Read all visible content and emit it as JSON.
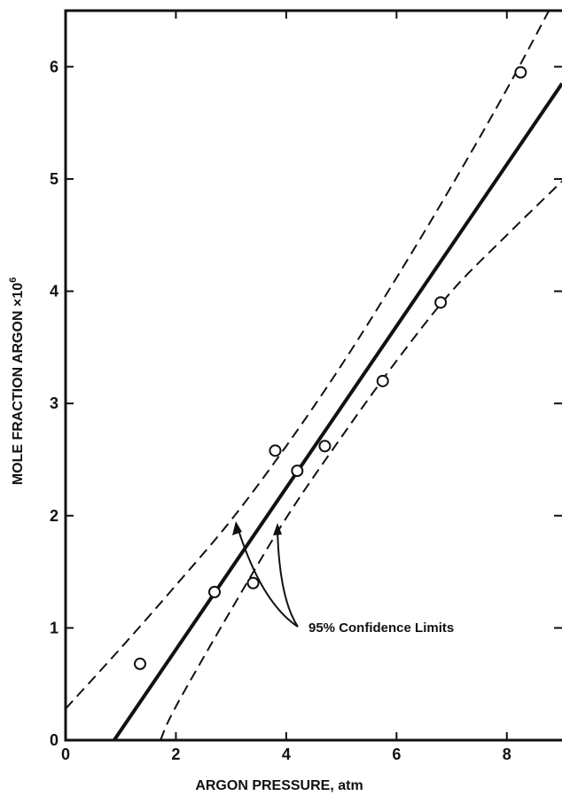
{
  "chart_data": {
    "type": "scatter",
    "xlabel": "ARGON PRESSURE, atm",
    "ylabel_main": "MOLE FRACTION ARGON ×10",
    "ylabel_exponent": "6",
    "xlim": [
      0,
      9
    ],
    "ylim": [
      0,
      6.5
    ],
    "x_ticks": [
      0,
      2,
      4,
      6,
      8
    ],
    "y_ticks": [
      0,
      1,
      2,
      3,
      4,
      5,
      6
    ],
    "x_tick_labels": [
      "0",
      "2",
      "4",
      "6",
      "8"
    ],
    "y_tick_labels": [
      "0",
      "1",
      "2",
      "3",
      "4",
      "5",
      "6"
    ],
    "grid": false,
    "points": [
      {
        "x": 1.35,
        "y": 0.68
      },
      {
        "x": 2.7,
        "y": 1.32
      },
      {
        "x": 3.4,
        "y": 1.4
      },
      {
        "x": 3.8,
        "y": 2.58
      },
      {
        "x": 4.2,
        "y": 2.4
      },
      {
        "x": 4.7,
        "y": 2.62
      },
      {
        "x": 5.75,
        "y": 3.2
      },
      {
        "x": 6.8,
        "y": 3.9
      },
      {
        "x": 8.25,
        "y": 5.95
      }
    ],
    "fit_line": {
      "style": "solid",
      "points": [
        {
          "x": 0.88,
          "y": 0
        },
        {
          "x": 9.0,
          "y": 5.85
        }
      ]
    },
    "confidence_limits": {
      "annotation": "95% Confidence Limits",
      "upper": {
        "style": "dashed",
        "points": [
          {
            "x": 0,
            "y": 0.28
          },
          {
            "x": 1,
            "y": 0.82
          },
          {
            "x": 2,
            "y": 1.38
          },
          {
            "x": 3,
            "y": 1.96
          },
          {
            "x": 4,
            "y": 2.62
          },
          {
            "x": 5,
            "y": 3.34
          },
          {
            "x": 6,
            "y": 4.12
          },
          {
            "x": 7,
            "y": 4.94
          },
          {
            "x": 8,
            "y": 5.8
          },
          {
            "x": 9,
            "y": 6.72
          }
        ]
      },
      "lower": {
        "style": "dashed",
        "points": [
          {
            "x": 1.72,
            "y": 0
          },
          {
            "x": 2,
            "y": 0.3
          },
          {
            "x": 3,
            "y": 1.16
          },
          {
            "x": 4,
            "y": 1.98
          },
          {
            "x": 5,
            "y": 2.7
          },
          {
            "x": 6,
            "y": 3.38
          },
          {
            "x": 7,
            "y": 4.0
          },
          {
            "x": 8,
            "y": 4.5
          },
          {
            "x": 9,
            "y": 4.98
          }
        ]
      }
    }
  }
}
